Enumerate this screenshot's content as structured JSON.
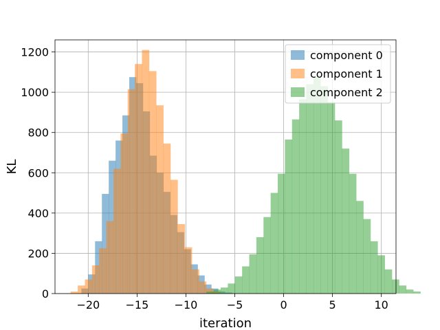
{
  "chart_data": {
    "type": "bar",
    "title": "",
    "xlabel": "iteration",
    "ylabel": "KL",
    "xlim": [
      -23.4,
      11.5
    ],
    "ylim": [
      0,
      1260
    ],
    "xticks": [
      -20,
      -15,
      -10,
      -5,
      0,
      5,
      10
    ],
    "xtick_labels": [
      "−20",
      "−15",
      "−10",
      "−5",
      "0",
      "5",
      "10"
    ],
    "yticks": [
      0,
      200,
      400,
      600,
      800,
      1000,
      1200
    ],
    "grid": true,
    "legend_position": "top-right",
    "opacity": 0.5,
    "series": [
      {
        "name": "component 0",
        "color": "#1f77b4",
        "bin_start": -20.7,
        "bin_width": 0.7,
        "values": [
          25,
          95,
          260,
          495,
          660,
          760,
          885,
          1075,
          1045,
          905,
          685,
          600,
          505,
          390,
          305,
          220,
          145,
          90,
          45,
          25,
          10,
          5
        ]
      },
      {
        "name": "component 1",
        "color": "#ff7f0e",
        "bin_start": -21.8,
        "bin_width": 0.73,
        "values": [
          10,
          40,
          70,
          140,
          225,
          360,
          620,
          795,
          1015,
          1140,
          1210,
          1105,
          935,
          745,
          565,
          345,
          230,
          120,
          60,
          25,
          10
        ]
      },
      {
        "name": "component 2",
        "color": "#2ca02c",
        "bin_start": -7.9,
        "bin_width": 0.73,
        "values": [
          10,
          20,
          30,
          50,
          85,
          135,
          195,
          280,
          380,
          500,
          595,
          765,
          865,
          965,
          1040,
          1075,
          1030,
          950,
          860,
          720,
          595,
          460,
          370,
          260,
          190,
          120,
          70,
          40,
          20,
          10
        ]
      }
    ]
  }
}
